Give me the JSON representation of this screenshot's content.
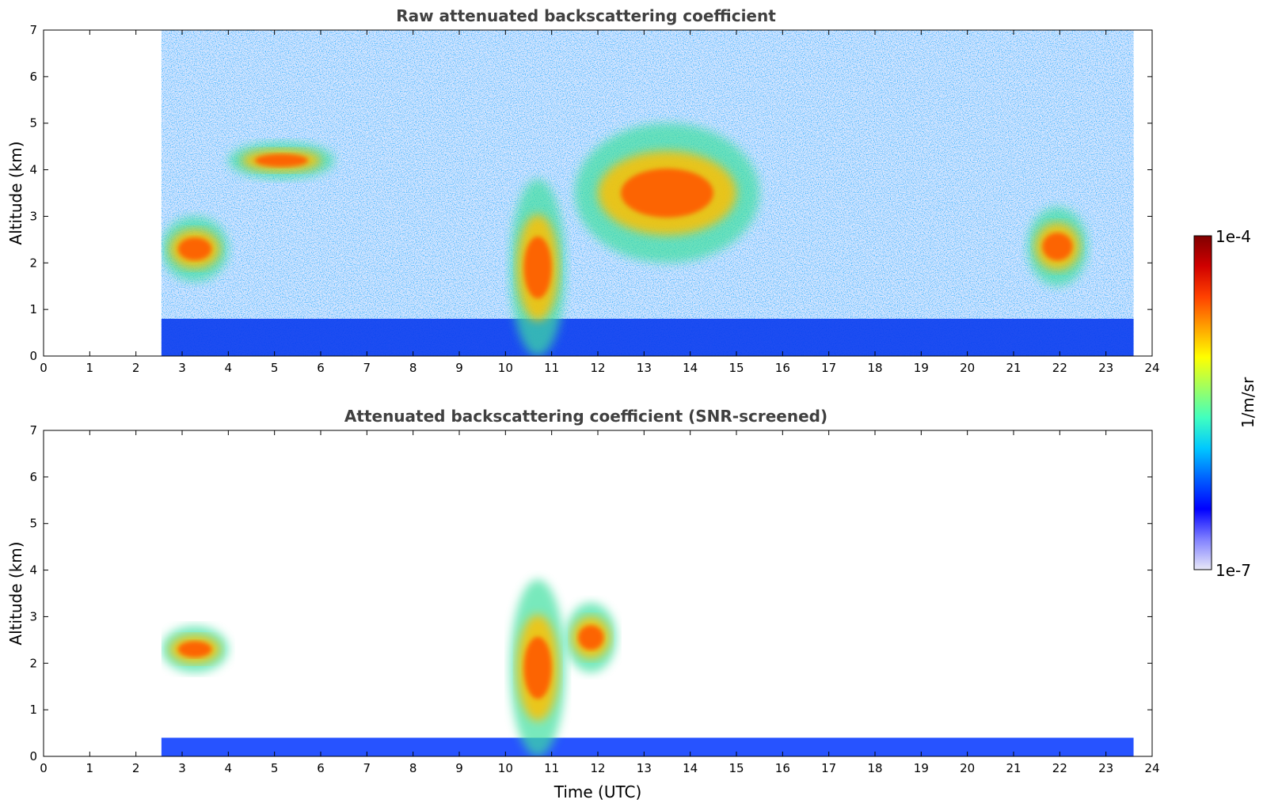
{
  "colors": {
    "jet": [
      "#e8e8f8",
      "#8080ff",
      "#0000ff",
      "#0060ff",
      "#00c8ff",
      "#40ffc0",
      "#a0ff60",
      "#ffff00",
      "#ffa000",
      "#ff4000",
      "#d00000",
      "#800000"
    ],
    "clear": "#ffffff"
  },
  "colorbar": {
    "label": "1/m/sr",
    "max_label": "1e-4",
    "min_label": "1e-7",
    "log_range": [
      -7,
      -4
    ]
  },
  "chart_data": [
    {
      "type": "heatmap",
      "title": "Raw attenuated backscattering coefficient",
      "xlabel": "",
      "ylabel": "Altitude (km)",
      "xlim": [
        0,
        24
      ],
      "ylim": [
        0,
        7
      ],
      "xticks": [
        "0",
        "1",
        "2",
        "3",
        "4",
        "5",
        "6",
        "7",
        "8",
        "9",
        "10",
        "11",
        "12",
        "13",
        "14",
        "15",
        "16",
        "17",
        "18",
        "19",
        "20",
        "21",
        "22",
        "23",
        "24"
      ],
      "yticks": [
        "0",
        "1",
        "2",
        "3",
        "4",
        "5",
        "6",
        "7"
      ],
      "data_time_range": [
        2.55,
        23.6
      ],
      "features": [
        {
          "kind": "boundary_layer",
          "t": [
            2.55,
            23.6
          ],
          "z": [
            0,
            0.8
          ]
        },
        {
          "kind": "cloud_layer",
          "t": [
            2.55,
            4.0
          ],
          "z": [
            1.6,
            3.0
          ]
        },
        {
          "kind": "cloud_layer",
          "t": [
            4.0,
            6.3
          ],
          "z": [
            3.8,
            4.6
          ]
        },
        {
          "kind": "cloud_layer",
          "t": [
            10.1,
            11.3
          ],
          "z": [
            0,
            3.8
          ]
        },
        {
          "kind": "cloud_layer",
          "t": [
            11.5,
            15.5
          ],
          "z": [
            2.0,
            5.0
          ]
        },
        {
          "kind": "cloud_layer",
          "t": [
            21.3,
            22.6
          ],
          "z": [
            1.5,
            3.2
          ]
        }
      ]
    },
    {
      "type": "heatmap",
      "title": "Attenuated backscattering coefficient (SNR-screened)",
      "xlabel": "Time (UTC)",
      "ylabel": "Altitude (km)",
      "xlim": [
        0,
        24
      ],
      "ylim": [
        0,
        7
      ],
      "xticks": [
        "0",
        "1",
        "2",
        "3",
        "4",
        "5",
        "6",
        "7",
        "8",
        "9",
        "10",
        "11",
        "12",
        "13",
        "14",
        "15",
        "16",
        "17",
        "18",
        "19",
        "20",
        "21",
        "22",
        "23",
        "24"
      ],
      "yticks": [
        "0",
        "1",
        "2",
        "3",
        "4",
        "5",
        "6",
        "7"
      ],
      "data_time_range": [
        2.55,
        23.6
      ],
      "features": [
        {
          "kind": "boundary_layer",
          "t": [
            2.55,
            23.6
          ],
          "z": [
            0,
            0.4
          ]
        },
        {
          "kind": "cloud_layer",
          "t": [
            2.55,
            4.0
          ],
          "z": [
            1.8,
            2.8
          ]
        },
        {
          "kind": "cloud_layer",
          "t": [
            10.1,
            11.3
          ],
          "z": [
            0,
            3.8
          ]
        },
        {
          "kind": "cloud_layer",
          "t": [
            11.3,
            12.4
          ],
          "z": [
            1.8,
            3.3
          ]
        }
      ]
    }
  ]
}
